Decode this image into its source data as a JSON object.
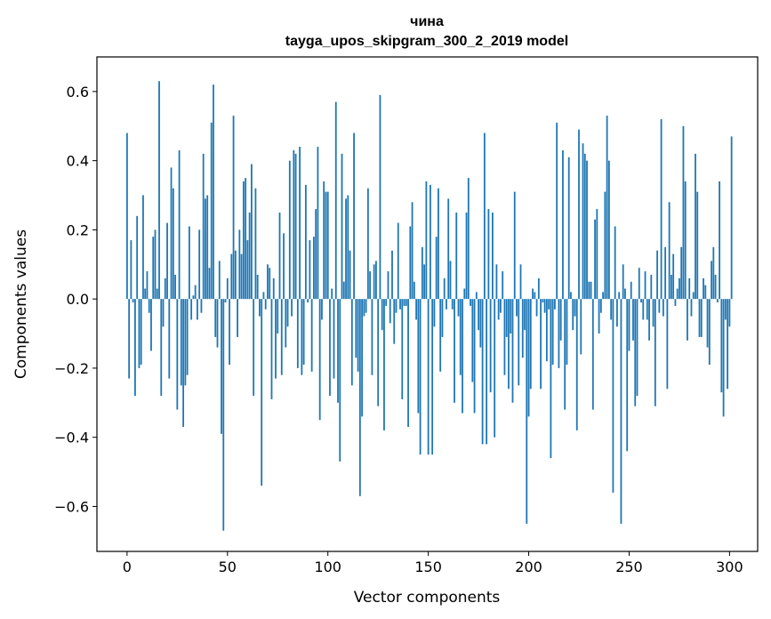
{
  "chart_data": {
    "type": "bar",
    "title": "чина",
    "subtitle": "tayga_upos_skipgram_300_2_2019 model",
    "xlabel": "Vector components",
    "ylabel": "Components values",
    "xlim": [
      -15,
      314
    ],
    "ylim": [
      -0.73,
      0.7
    ],
    "xticks": [
      0,
      50,
      100,
      150,
      200,
      250,
      300
    ],
    "yticks": [
      -0.6,
      -0.4,
      -0.2,
      0.0,
      0.2,
      0.4,
      0.6
    ],
    "ytick_labels": [
      "−0.6",
      "−0.4",
      "−0.2",
      "0.0",
      "0.2",
      "0.4",
      "0.6"
    ],
    "color": "#1f77b4",
    "values": [
      0.48,
      -0.23,
      0.17,
      -0.01,
      -0.28,
      0.24,
      -0.2,
      -0.19,
      0.3,
      0.03,
      0.08,
      -0.04,
      -0.15,
      0.18,
      0.2,
      0.03,
      0.63,
      -0.28,
      -0.08,
      0.06,
      0.22,
      -0.23,
      0.38,
      0.32,
      0.07,
      -0.32,
      0.43,
      -0.25,
      -0.37,
      -0.25,
      -0.22,
      0.21,
      -0.06,
      0.01,
      0.04,
      -0.06,
      0.2,
      -0.04,
      0.42,
      0.29,
      0.3,
      0.09,
      0.51,
      0.62,
      -0.11,
      -0.14,
      0.11,
      -0.39,
      -0.67,
      -0.01,
      0.06,
      -0.19,
      0.13,
      0.53,
      0.14,
      -0.11,
      0.2,
      0.13,
      0.34,
      0.35,
      0.17,
      0.25,
      0.39,
      -0.28,
      0.32,
      0.07,
      -0.05,
      -0.54,
      0.02,
      -0.03,
      0.1,
      0.09,
      -0.29,
      0.06,
      -0.23,
      -0.1,
      0.25,
      -0.22,
      0.19,
      -0.14,
      -0.08,
      0.4,
      -0.05,
      0.43,
      0.42,
      -0.2,
      0.44,
      -0.22,
      -0.19,
      0.33,
      -0.01,
      0.17,
      -0.21,
      0.18,
      0.26,
      0.44,
      -0.35,
      -0.06,
      0.34,
      0.31,
      0.31,
      -0.28,
      0.03,
      -0.23,
      0.57,
      -0.3,
      -0.47,
      0.42,
      0.05,
      0.29,
      0.3,
      0.14,
      -0.25,
      0.48,
      -0.17,
      -0.21,
      -0.57,
      -0.34,
      -0.05,
      -0.04,
      0.32,
      0.08,
      -0.22,
      0.1,
      0.11,
      -0.31,
      0.59,
      -0.09,
      -0.38,
      -0.02,
      0.08,
      -0.07,
      0.14,
      -0.13,
      -0.04,
      0.22,
      -0.03,
      -0.29,
      -0.02,
      -0.02,
      -0.37,
      0.21,
      0.28,
      0.05,
      -0.06,
      -0.33,
      -0.45,
      0.15,
      0.1,
      0.34,
      -0.45,
      0.33,
      -0.45,
      -0.08,
      0.18,
      0.32,
      -0.21,
      -0.11,
      0.06,
      -0.03,
      0.29,
      0.11,
      -0.03,
      -0.3,
      0.25,
      -0.05,
      -0.22,
      -0.33,
      0.03,
      0.25,
      0.35,
      -0.02,
      -0.24,
      -0.33,
      0.02,
      -0.09,
      -0.14,
      -0.42,
      0.48,
      -0.42,
      0.26,
      -0.27,
      0.25,
      -0.4,
      0.1,
      -0.06,
      -0.04,
      0.08,
      -0.22,
      -0.11,
      -0.26,
      -0.1,
      -0.3,
      0.31,
      -0.05,
      -0.25,
      0.1,
      -0.17,
      -0.09,
      -0.65,
      -0.34,
      -0.26,
      0.03,
      0.02,
      -0.05,
      0.06,
      -0.26,
      -0.01,
      -0.04,
      -0.18,
      -0.03,
      -0.46,
      -0.19,
      -0.03,
      0.51,
      -0.2,
      -0.12,
      0.43,
      -0.32,
      -0.19,
      0.41,
      0.02,
      -0.09,
      -0.05,
      -0.38,
      0.49,
      -0.16,
      0.45,
      0.42,
      0.4,
      0.05,
      0.05,
      -0.32,
      0.23,
      0.26,
      -0.1,
      -0.04,
      0.02,
      0.31,
      0.53,
      0.4,
      -0.06,
      -0.56,
      0.21,
      -0.08,
      0.02,
      -0.65,
      0.1,
      0.03,
      -0.44,
      -0.15,
      0.05,
      -0.12,
      -0.31,
      -0.28,
      0.09,
      -0.01,
      -0.06,
      0.08,
      -0.06,
      -0.12,
      0.07,
      -0.08,
      -0.31,
      0.14,
      -0.04,
      0.52,
      -0.05,
      0.15,
      -0.26,
      0.28,
      0.07,
      0.13,
      -0.02,
      0.03,
      0.06,
      0.15,
      0.5,
      0.34,
      -0.12,
      0.06,
      -0.05,
      0.02,
      0.42,
      0.31,
      -0.11,
      -0.11,
      0.06,
      0.04,
      -0.14,
      -0.19,
      0.11,
      0.15,
      0.07,
      -0.01,
      0.34,
      -0.27,
      -0.34,
      -0.06,
      -0.26,
      -0.08,
      0.47
    ]
  }
}
